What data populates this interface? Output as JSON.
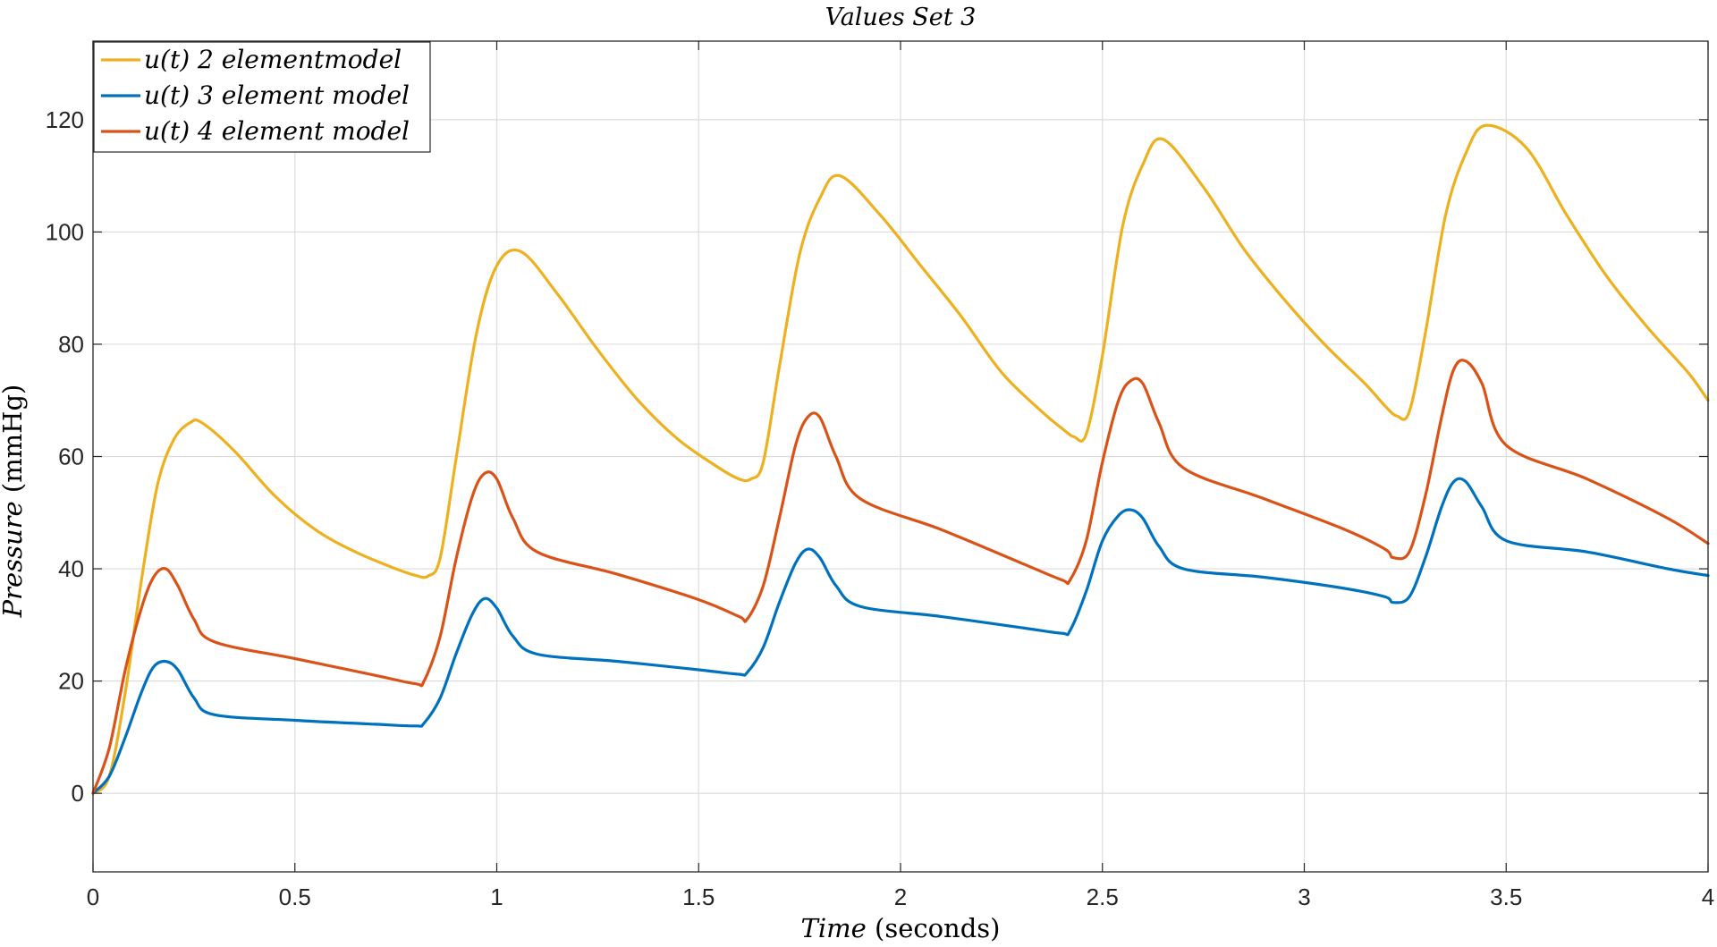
{
  "chart_data": {
    "type": "line",
    "title": "Values Set 3",
    "xlabel": {
      "italic": "Time",
      "roman": " (seconds)"
    },
    "ylabel": {
      "italic": "Pressure",
      "roman": " (mmHg)"
    },
    "xlim": [
      0,
      4
    ],
    "ylim": [
      -14,
      134
    ],
    "xticks": [
      0,
      0.5,
      1,
      1.5,
      2,
      2.5,
      3,
      3.5,
      4
    ],
    "xtick_labels": [
      "0",
      "0.5",
      "1",
      "1.5",
      "2",
      "2.5",
      "3",
      "3.5",
      "4"
    ],
    "yticks": [
      0,
      20,
      40,
      60,
      80,
      100,
      120
    ],
    "ytick_labels": [
      "0",
      "20",
      "40",
      "60",
      "80",
      "100",
      "120"
    ],
    "grid": true,
    "legend_position": "top-left",
    "series": [
      {
        "name": "u(t) 2 elementmodel",
        "color": "#EDB120",
        "x": [
          0,
          0.04,
          0.08,
          0.12,
          0.16,
          0.2,
          0.24,
          0.27,
          0.35,
          0.45,
          0.55,
          0.65,
          0.75,
          0.8,
          0.83,
          0.86,
          0.9,
          0.95,
          1.0,
          1.06,
          1.15,
          1.25,
          1.35,
          1.45,
          1.55,
          1.6,
          1.63,
          1.66,
          1.7,
          1.75,
          1.8,
          1.85,
          1.95,
          2.05,
          2.15,
          2.25,
          2.35,
          2.4,
          2.43,
          2.46,
          2.5,
          2.55,
          2.6,
          2.65,
          2.75,
          2.85,
          2.95,
          3.05,
          3.15,
          3.2,
          3.23,
          3.26,
          3.3,
          3.35,
          3.4,
          3.45,
          3.55,
          3.65,
          3.75,
          3.85,
          3.95,
          4.0
        ],
        "y": [
          0,
          3,
          18,
          38,
          55,
          63,
          66,
          66,
          61,
          53,
          47,
          43,
          40,
          38.8,
          38.7,
          42,
          60,
          82,
          94,
          96.5,
          89,
          79,
          70,
          63,
          58,
          56,
          56,
          59,
          76,
          96,
          106,
          110,
          103,
          94,
          85,
          75,
          68,
          65,
          63.5,
          64,
          78,
          101,
          112,
          116.5,
          108,
          97,
          88,
          80,
          73,
          69,
          67.2,
          68,
          82,
          103,
          114,
          119,
          115,
          103,
          92,
          83,
          75,
          70
        ]
      },
      {
        "name": "u(t) 3 element model",
        "color": "#0072BD",
        "x": [
          0,
          0.04,
          0.08,
          0.12,
          0.15,
          0.18,
          0.21,
          0.25,
          0.3,
          0.5,
          0.7,
          0.8,
          0.82,
          0.86,
          0.9,
          0.94,
          0.97,
          1.0,
          1.04,
          1.1,
          1.3,
          1.5,
          1.6,
          1.62,
          1.66,
          1.7,
          1.74,
          1.77,
          1.8,
          1.84,
          1.9,
          2.1,
          2.3,
          2.4,
          2.42,
          2.46,
          2.5,
          2.54,
          2.57,
          2.6,
          2.64,
          2.7,
          2.9,
          3.1,
          3.2,
          3.22,
          3.26,
          3.3,
          3.34,
          3.37,
          3.4,
          3.44,
          3.5,
          3.7,
          3.9,
          4.0
        ],
        "y": [
          0,
          3,
          10,
          18,
          22.5,
          23.5,
          22,
          17,
          14,
          13,
          12.3,
          12,
          12.5,
          17,
          25,
          32,
          34.7,
          33,
          28,
          24.8,
          23.5,
          22,
          21.2,
          21.5,
          26,
          34,
          41,
          43.5,
          42,
          37,
          33.3,
          31.5,
          29.5,
          28.5,
          29,
          36,
          45,
          49.5,
          50.5,
          49,
          44,
          40,
          38.5,
          36.5,
          35,
          34,
          35,
          42,
          51,
          55.5,
          55.5,
          51,
          45,
          43,
          40,
          38.8
        ]
      },
      {
        "name": "u(t) 4 element model",
        "color": "#D95319",
        "x": [
          0,
          0.04,
          0.08,
          0.12,
          0.15,
          0.18,
          0.21,
          0.25,
          0.3,
          0.5,
          0.7,
          0.8,
          0.82,
          0.86,
          0.9,
          0.94,
          0.97,
          1.0,
          1.04,
          1.1,
          1.3,
          1.5,
          1.6,
          1.62,
          1.66,
          1.7,
          1.74,
          1.77,
          1.8,
          1.84,
          1.9,
          2.1,
          2.3,
          2.4,
          2.42,
          2.46,
          2.5,
          2.54,
          2.57,
          2.6,
          2.64,
          2.7,
          2.9,
          3.1,
          3.2,
          3.22,
          3.26,
          3.3,
          3.34,
          3.37,
          3.4,
          3.44,
          3.5,
          3.7,
          3.9,
          4.0
        ],
        "y": [
          0,
          8,
          22,
          33,
          38.5,
          40,
          37,
          31,
          27,
          24,
          21,
          19.5,
          20,
          28,
          42,
          53,
          57,
          56,
          49,
          43,
          39,
          34.5,
          31.5,
          31,
          37,
          49,
          62,
          67,
          67,
          60,
          52.5,
          47,
          41,
          38,
          38,
          45,
          59,
          70,
          73.5,
          73,
          66,
          58,
          52.5,
          47,
          43.5,
          42,
          43,
          53,
          67,
          75.5,
          77,
          73,
          62,
          56,
          49,
          44.5
        ]
      }
    ]
  }
}
